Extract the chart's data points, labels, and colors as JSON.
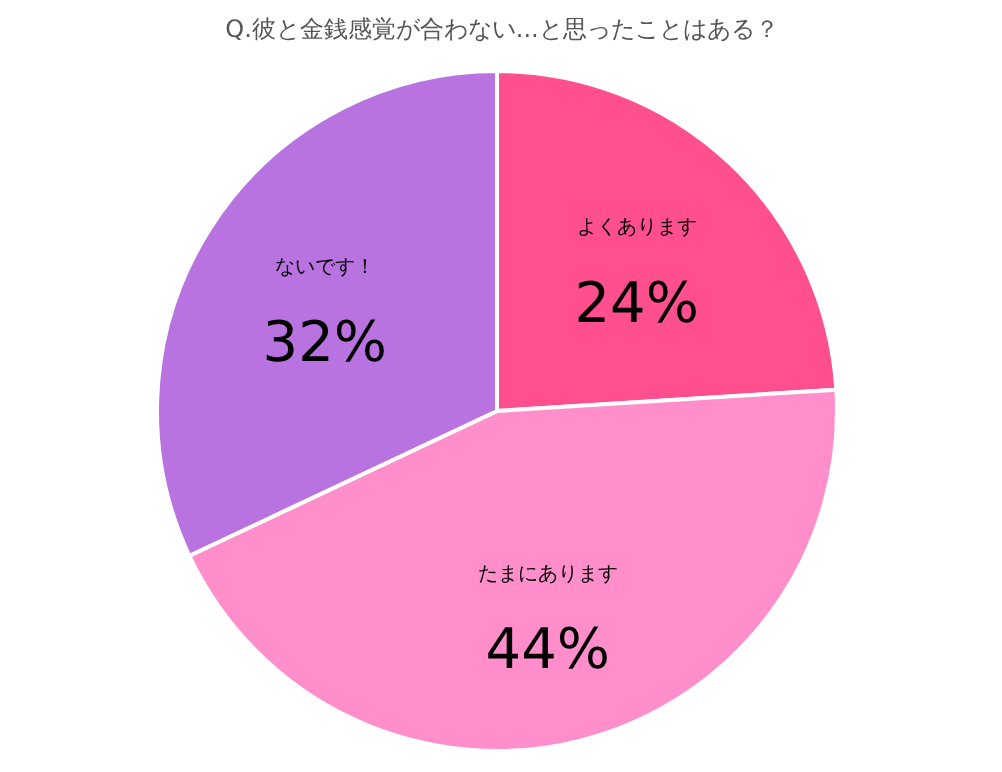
{
  "chart_data": {
    "type": "pie",
    "title": "Q.彼と金銭感覚が合わない...と思ったことはある？",
    "categories": [
      "よくあります",
      "たまにあります",
      "ないです！"
    ],
    "values": [
      24,
      44,
      32
    ],
    "colors": [
      "#ff4f8f",
      "#ff8ecb",
      "#b873e0"
    ],
    "value_labels": [
      "24%",
      "44%",
      "32%"
    ]
  }
}
